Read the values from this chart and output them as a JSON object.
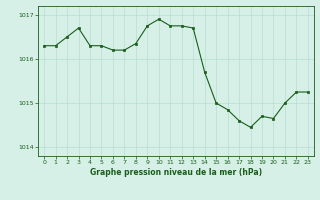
{
  "x": [
    0,
    1,
    2,
    3,
    4,
    5,
    6,
    7,
    8,
    9,
    10,
    11,
    12,
    13,
    14,
    15,
    16,
    17,
    18,
    19,
    20,
    21,
    22,
    23
  ],
  "y": [
    1016.3,
    1016.3,
    1016.5,
    1016.7,
    1016.3,
    1016.3,
    1016.2,
    1016.2,
    1016.35,
    1016.75,
    1016.9,
    1016.75,
    1016.75,
    1016.7,
    1015.7,
    1015.0,
    1014.85,
    1014.6,
    1014.45,
    1014.7,
    1014.65,
    1015.0,
    1015.25,
    1015.25
  ],
  "line_color": "#1a5e1a",
  "marker_color": "#1a5e1a",
  "bg_color": "#d6f0e8",
  "grid_color": "#b8ddd0",
  "text_color": "#1a5e1a",
  "xlabel": "Graphe pression niveau de la mer (hPa)",
  "ylim": [
    1013.8,
    1017.2
  ],
  "yticks": [
    1014,
    1015,
    1016,
    1017
  ],
  "xlim": [
    -0.5,
    23.5
  ],
  "xticks": [
    0,
    1,
    2,
    3,
    4,
    5,
    6,
    7,
    8,
    9,
    10,
    11,
    12,
    13,
    14,
    15,
    16,
    17,
    18,
    19,
    20,
    21,
    22,
    23
  ]
}
